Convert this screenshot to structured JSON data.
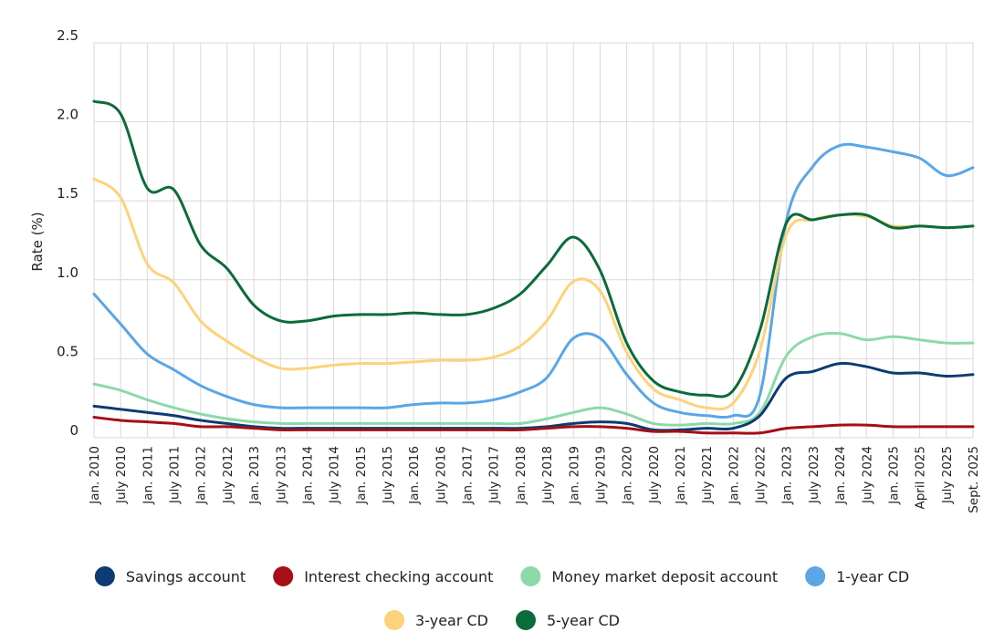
{
  "chart_data": {
    "type": "line",
    "title": "",
    "xlabel": "",
    "ylabel": "Rate (%)",
    "ylim": [
      0,
      2.5
    ],
    "yticks": [
      0,
      0.5,
      1.0,
      1.5,
      2.0,
      2.5
    ],
    "ytick_labels": [
      "0",
      "0.5",
      "1.0",
      "1.5",
      "2.0",
      "2.5"
    ],
    "grid": true,
    "legend_position": "bottom",
    "categories": [
      "Jan. 2010",
      "July 2010",
      "Jan. 2011",
      "July 2011",
      "Jan. 2012",
      "July 2012",
      "Jan. 2013",
      "July 2013",
      "Jan. 2014",
      "July 2014",
      "Jan. 2015",
      "July 2015",
      "Jan. 2016",
      "July 2016",
      "Jan. 2017",
      "July 2017",
      "Jan. 2018",
      "July 2018",
      "Jan. 2019",
      "July 2019",
      "Jan. 2020",
      "July 2020",
      "Jan. 2021",
      "July 2021",
      "Jan. 2022",
      "July 2022",
      "Jan. 2023",
      "July 2023",
      "Jan. 2024",
      "July 2024",
      "Jan. 2025",
      "April 2025",
      "July 2025",
      "Sept. 2025"
    ],
    "series": [
      {
        "name": "Savings account",
        "color": "#0d3b73",
        "values": [
          0.2,
          0.18,
          0.16,
          0.14,
          0.11,
          0.09,
          0.07,
          0.06,
          0.06,
          0.06,
          0.06,
          0.06,
          0.06,
          0.06,
          0.06,
          0.06,
          0.06,
          0.07,
          0.09,
          0.1,
          0.09,
          0.05,
          0.05,
          0.06,
          0.06,
          0.14,
          0.38,
          0.42,
          0.47,
          0.45,
          0.41,
          0.41,
          0.39,
          0.4
        ]
      },
      {
        "name": "Interest checking account",
        "color": "#a50f15",
        "values": [
          0.13,
          0.11,
          0.1,
          0.09,
          0.07,
          0.07,
          0.06,
          0.05,
          0.05,
          0.05,
          0.05,
          0.05,
          0.05,
          0.05,
          0.05,
          0.05,
          0.05,
          0.06,
          0.07,
          0.07,
          0.06,
          0.04,
          0.04,
          0.03,
          0.03,
          0.03,
          0.06,
          0.07,
          0.08,
          0.08,
          0.07,
          0.07,
          0.07,
          0.07
        ]
      },
      {
        "name": "Money market deposit account",
        "color": "#8dd9a8",
        "values": [
          0.34,
          0.3,
          0.24,
          0.19,
          0.15,
          0.12,
          0.1,
          0.09,
          0.09,
          0.09,
          0.09,
          0.09,
          0.09,
          0.09,
          0.09,
          0.09,
          0.09,
          0.12,
          0.16,
          0.19,
          0.15,
          0.09,
          0.08,
          0.09,
          0.09,
          0.16,
          0.52,
          0.64,
          0.66,
          0.62,
          0.64,
          0.62,
          0.6,
          0.6
        ]
      },
      {
        "name": "1-year CD",
        "color": "#5aa6e6",
        "values": [
          0.91,
          0.72,
          0.53,
          0.43,
          0.33,
          0.26,
          0.21,
          0.19,
          0.19,
          0.19,
          0.19,
          0.19,
          0.21,
          0.22,
          0.22,
          0.24,
          0.29,
          0.38,
          0.63,
          0.63,
          0.4,
          0.22,
          0.16,
          0.14,
          0.14,
          0.27,
          1.38,
          1.72,
          1.85,
          1.84,
          1.81,
          1.77,
          1.66,
          1.71
        ]
      },
      {
        "name": "3-year CD",
        "color": "#fdd27a",
        "values": [
          1.64,
          1.52,
          1.1,
          0.98,
          0.74,
          0.61,
          0.51,
          0.44,
          0.44,
          0.46,
          0.47,
          0.47,
          0.48,
          0.49,
          0.49,
          0.51,
          0.58,
          0.74,
          0.99,
          0.93,
          0.54,
          0.31,
          0.24,
          0.19,
          0.22,
          0.55,
          1.29,
          1.38,
          1.41,
          1.4,
          1.34,
          1.34,
          1.33,
          1.34
        ]
      },
      {
        "name": "5-year CD",
        "color": "#0b6b3a",
        "values": [
          2.13,
          2.05,
          1.58,
          1.57,
          1.22,
          1.07,
          0.84,
          0.74,
          0.74,
          0.77,
          0.78,
          0.78,
          0.79,
          0.78,
          0.78,
          0.82,
          0.91,
          1.09,
          1.27,
          1.06,
          0.6,
          0.36,
          0.29,
          0.27,
          0.3,
          0.68,
          1.36,
          1.38,
          1.41,
          1.41,
          1.33,
          1.34,
          1.33,
          1.34
        ]
      }
    ]
  }
}
